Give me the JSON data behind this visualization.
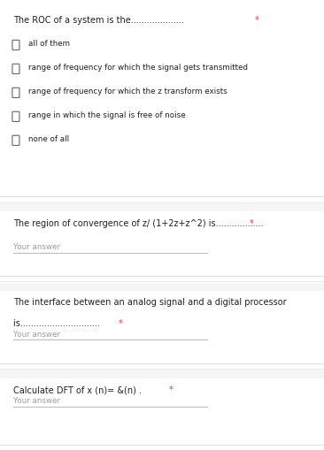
{
  "bg_color": "#f5f5f5",
  "section_bg": "#ffffff",
  "divider_color": "#e0e0e0",
  "text_color": "#212121",
  "hint_color": "#9e9e9e",
  "red_color": "#e53935",
  "checkbox_color": "#666666",
  "q1_title": "The ROC of a system is the.................... ",
  "q1_title_star": "*",
  "q1_options": [
    "all of them",
    "range of frequency for which the signal gets transmitted",
    "range of frequency for which the z transform exists",
    "range in which the signal is free of noise",
    "none of all"
  ],
  "q2_title": "The region of convergence of z/ (1+2z+z^2) is.................. ",
  "q2_title_star": "*",
  "q2_hint": "Your answer",
  "q3_title_line1": "The interface between an analog signal and a digital processor",
  "q3_title_line2": "is.............................. ",
  "q3_title_star": "*",
  "q3_hint": "Your answer",
  "q4_title": "Calculate DFT of x (n)= &(n) . ",
  "q4_title_star": "*",
  "q4_hint": "Your answer",
  "font_family": "DejaVu Sans"
}
